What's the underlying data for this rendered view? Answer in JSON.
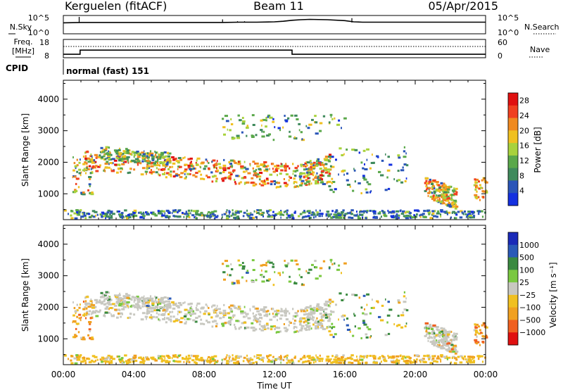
{
  "header": {
    "station": "Kerguelen (fitACF)",
    "beam": "Beam 11",
    "date": "05/Apr/2015"
  },
  "noise_panel": {
    "left_label": "N.Sky",
    "right_label": "N.Search",
    "ticks_left": [
      "10^5",
      "10^0"
    ],
    "ticks_right": [
      "10^5",
      "10^0"
    ]
  },
  "freq_panel": {
    "left_label_1": "Freq.",
    "left_label_2": "[MHz]",
    "right_label": "Nave",
    "ticks_left": [
      "18",
      "8"
    ],
    "ticks_right": [
      "60",
      "0"
    ]
  },
  "cpid": {
    "label": "CPID",
    "value": "normal (fast) 151"
  },
  "colors": {
    "power_scale": [
      "#1430e0",
      "#2a55b8",
      "#3f8a5c",
      "#5aa84a",
      "#a8d23c",
      "#f0c020",
      "#f08a20",
      "#f04020",
      "#e01010"
    ],
    "velocity_scale": [
      "#1a2ab8",
      "#2a5ab8",
      "#3a8a40",
      "#7ac840",
      "#c8c8c0",
      "#f0c020",
      "#f0a020",
      "#f06020",
      "#e01010"
    ]
  },
  "chart_data": [
    {
      "type": "line",
      "title": "",
      "xlabel": "",
      "ylabel": "N.Sky",
      "x_unit": "hours UT",
      "xlim": [
        0,
        24
      ],
      "ylim_log10": [
        0,
        5
      ],
      "series": [
        {
          "name": "N.Sky",
          "x": [
            0,
            1,
            2,
            4,
            6,
            8,
            9,
            10,
            11,
            12,
            12.5,
            13,
            13.5,
            14,
            15,
            16,
            16.5,
            17,
            18,
            20,
            22,
            24
          ],
          "y_log10": [
            3.1,
            3.2,
            3.2,
            3.2,
            3.2,
            3.2,
            3.2,
            3.3,
            3.3,
            3.4,
            3.6,
            3.9,
            4.1,
            4.2,
            4.1,
            3.8,
            3.4,
            3.3,
            3.3,
            3.3,
            3.3,
            3.3
          ]
        }
      ]
    },
    {
      "type": "line",
      "title": "",
      "xlabel": "",
      "ylabel": "Freq. [MHz]",
      "x_unit": "hours UT",
      "xlim": [
        0,
        24
      ],
      "ylim": [
        8,
        18
      ],
      "series": [
        {
          "name": "Freq.",
          "x": [
            0,
            0.95,
            0.95,
            13,
            13,
            24
          ],
          "y": [
            9.3,
            9.3,
            12.0,
            12.0,
            9.3,
            9.3
          ]
        }
      ]
    },
    {
      "type": "heatmap",
      "title": "",
      "xlabel": "",
      "ylabel": "Slant Range [km]",
      "xlim": [
        0,
        24
      ],
      "ylim": [
        180,
        4600
      ],
      "x_ticks": [
        "00:00",
        "04:00",
        "08:00",
        "12:00",
        "16:00",
        "20:00",
        "00:00"
      ],
      "y_ticks": [
        1000,
        2000,
        3000,
        4000
      ],
      "colorbar_label": "Power [dB]",
      "colorbar_ticks": [
        4,
        8,
        12,
        16,
        20,
        24,
        28
      ],
      "colorbar_range": [
        0,
        30
      ]
    },
    {
      "type": "heatmap",
      "title": "",
      "xlabel": "Time UT",
      "ylabel": "Slant Range [km]",
      "xlim": [
        0,
        24
      ],
      "ylim": [
        180,
        4600
      ],
      "x_ticks": [
        "00:00",
        "04:00",
        "08:00",
        "12:00",
        "16:00",
        "20:00",
        "00:00"
      ],
      "y_ticks": [
        1000,
        2000,
        3000,
        4000
      ],
      "colorbar_label": "Velocity [m s⁻¹]",
      "colorbar_ticks": [
        "1000",
        "500",
        "100",
        "25",
        "−25",
        "−100",
        "−500",
        "−1000"
      ]
    }
  ]
}
